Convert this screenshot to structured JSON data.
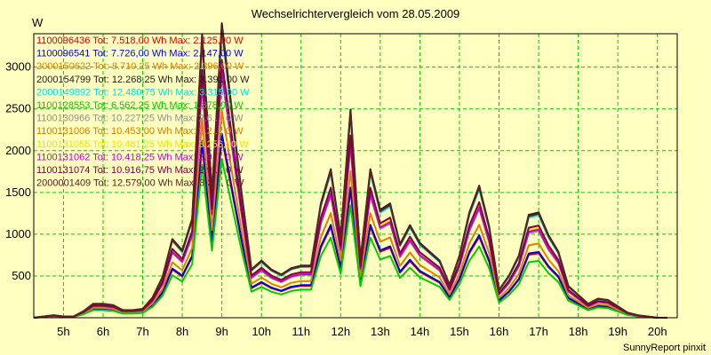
{
  "title": "Wechselrichtervergleich vom 28.05.2009",
  "unit": "W",
  "footer": "SunnyReport pinxit",
  "chart_data": {
    "type": "line",
    "x_unit": "hour",
    "xlim": [
      4.25,
      20.5
    ],
    "ylim": [
      0,
      3400
    ],
    "grid": true,
    "legend_position": "top-left",
    "x_ticks": [
      5,
      6,
      7,
      8,
      9,
      10,
      11,
      12,
      13,
      14,
      15,
      16,
      17,
      18,
      19,
      20
    ],
    "x_tick_labels": [
      "5h",
      "6h",
      "7h",
      "8h",
      "9h",
      "10h",
      "11h",
      "12h",
      "13h",
      "14h",
      "15h",
      "16h",
      "17h",
      "18h",
      "19h",
      "20h"
    ],
    "y_ticks": [
      500,
      1000,
      1500,
      2000,
      2500,
      3000
    ],
    "y_tick_labels": [
      "500",
      "1000",
      "1500",
      "2000",
      "2500",
      "3000"
    ],
    "x": [
      4.25,
      4.5,
      4.75,
      5,
      5.25,
      5.5,
      5.75,
      6,
      6.25,
      6.5,
      6.75,
      7,
      7.25,
      7.5,
      7.75,
      8,
      8.25,
      8.5,
      8.75,
      9,
      9.25,
      9.5,
      9.75,
      10,
      10.25,
      10.5,
      10.75,
      11,
      11.25,
      11.5,
      11.75,
      12,
      12.25,
      12.5,
      12.75,
      13,
      13.25,
      13.5,
      13.75,
      14,
      14.25,
      14.5,
      14.75,
      15,
      15.25,
      15.5,
      15.75,
      16,
      16.25,
      16.5,
      16.75,
      17,
      17.25,
      17.5,
      17.75,
      18,
      18.25,
      18.5,
      18.75,
      19,
      19.25,
      19.5,
      19.75,
      20,
      20.25,
      20.5
    ],
    "base_profile": [
      0,
      10,
      20,
      10,
      10,
      50,
      110,
      110,
      100,
      60,
      60,
      70,
      160,
      320,
      620,
      530,
      780,
      2230,
      980,
      2320,
      1640,
      980,
      380,
      450,
      380,
      340,
      390,
      410,
      410,
      900,
      1170,
      640,
      1640,
      460,
      1170,
      850,
      900,
      580,
      730,
      590,
      520,
      450,
      260,
      490,
      830,
      1040,
      720,
      220,
      330,
      490,
      810,
      830,
      650,
      520,
      250,
      180,
      110,
      150,
      140,
      90,
      40,
      20,
      10,
      0,
      0
    ],
    "series": [
      {
        "label": "1100096436 Tot: 7.518,00 Wh Max: 2.125,00 W",
        "color": "#dd0000",
        "scale": 0.93
      },
      {
        "label": "1100096541 Tot: 7.726,00 Wh Max: 2.147,00 W",
        "color": "#0000dd",
        "scale": 0.95
      },
      {
        "label": "2000150622 Tot: 8.710,25 Wh Max: 2.396,00 W",
        "color": "#e08000",
        "scale": 1.07
      },
      {
        "label": "2000154799 Tot: 12.268,25 Wh Max: 3.391,00 W",
        "color": "#202020",
        "scale": 1.52
      },
      {
        "label": "2000149892 Tot: 12.480,75 Wh Max: 3.315,00 W",
        "color": "#00e0e0",
        "scale": 1.48
      },
      {
        "label": "1100128553 Tot: 6.562,25 Wh Max: 1.878,00 W",
        "color": "#00cc00",
        "scale": 0.82
      },
      {
        "label": "1100130966 Tot: 10.227,25 Wh Max: 2.6..., 0 W",
        "color": "#909090",
        "scale": 1.25
      },
      {
        "label": "1100131006 Tot: 10.453,00 Wh Max: 3.2..., 0 W",
        "color": "#d08000",
        "scale": 1.28
      },
      {
        "label": "1100131055 Tot: 10.481,25 Wh Max: 3.256,00 W",
        "color": "#e8e800",
        "scale": 1.3
      },
      {
        "label": "1100131062 Tot: 10.418,25 Wh Max: 2.9..., 0 W",
        "color": "#cc00cc",
        "scale": 1.27
      },
      {
        "label": "1100131074 Tot: 10.916,75 Wh Max: 2.9..., 0 W",
        "color": "#800040",
        "scale": 1.33
      },
      {
        "label": "2000001409 Tot: 12.579,00 Wh Max: 3.3..., 0 W",
        "color": "#602020",
        "scale": 1.5
      }
    ]
  }
}
